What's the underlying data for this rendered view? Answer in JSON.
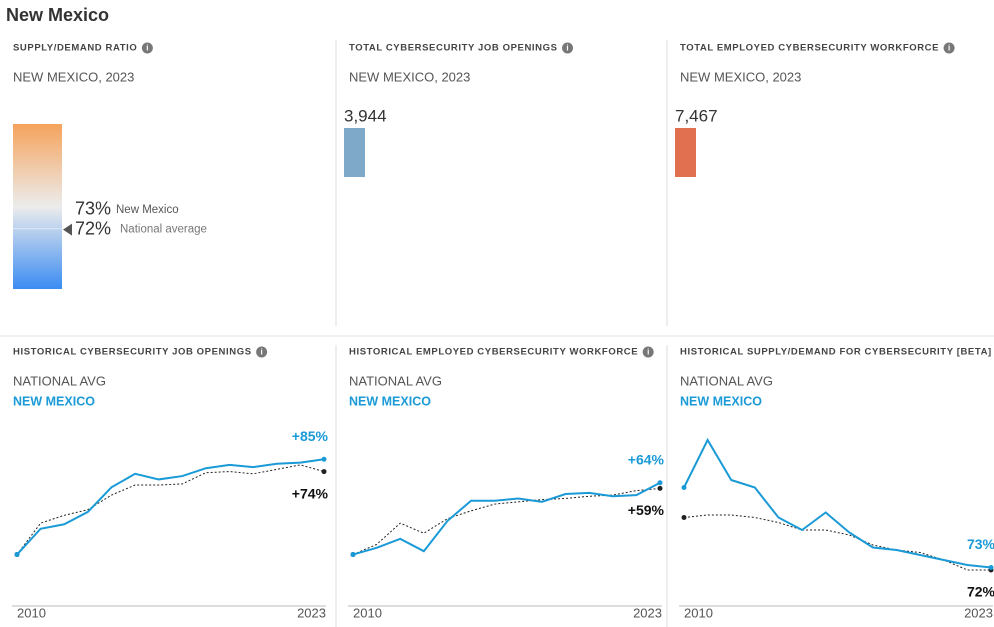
{
  "title": "New Mexico",
  "chart_data": [
    {
      "type": "gauge",
      "title": "SUPPLY/DEMAND RATIO",
      "subtitle": "NEW MEXICO, 2023",
      "ylim": [
        0,
        200
      ],
      "gradient": [
        "#f5a35c",
        "#ececec",
        "#3b8cf2"
      ],
      "series": [
        {
          "name": "New Mexico",
          "values": [
            73
          ],
          "value_labels": [
            "73%"
          ]
        },
        {
          "name": "National average",
          "values": [
            72
          ],
          "value_labels": [
            "72%"
          ]
        }
      ]
    },
    {
      "type": "bar",
      "title": "TOTAL CYBERSECURITY JOB OPENINGS",
      "subtitle": "NEW MEXICO, 2023",
      "values": [
        3944
      ],
      "value_labels": [
        "3,944"
      ],
      "color": "#7fa9c9",
      "ylim": [
        0,
        3944
      ]
    },
    {
      "type": "bar",
      "title": "TOTAL EMPLOYED CYBERSECURITY WORKFORCE",
      "subtitle": "NEW MEXICO, 2023",
      "values": [
        7467
      ],
      "value_labels": [
        "7,467"
      ],
      "color": "#e0704f",
      "ylim": [
        0,
        7467
      ]
    },
    {
      "type": "line",
      "title": "HISTORICAL CYBERSECURITY JOB OPENINGS",
      "x": [
        2010,
        2011,
        2012,
        2013,
        2014,
        2015,
        2016,
        2017,
        2018,
        2019,
        2020,
        2021,
        2022,
        2023
      ],
      "xlim": [
        2010,
        2023
      ],
      "xticks": [
        2010,
        2023
      ],
      "ylim": [
        -45,
        120
      ],
      "series": [
        {
          "name": "NATIONAL AVG",
          "color": "#222222",
          "values": [
            0,
            28,
            35,
            40,
            53,
            62,
            62,
            63,
            73,
            74,
            72,
            76,
            80,
            74
          ],
          "value_labels": [
            null,
            null,
            null,
            null,
            null,
            null,
            null,
            null,
            null,
            null,
            null,
            null,
            null,
            "+74%"
          ]
        },
        {
          "name": "NEW MEXICO",
          "color": "#1a9ad6",
          "values": [
            0,
            23,
            27,
            38,
            60,
            72,
            67,
            70,
            77,
            80,
            78,
            81,
            82,
            85
          ],
          "value_labels": [
            null,
            null,
            null,
            null,
            null,
            null,
            null,
            null,
            null,
            null,
            null,
            null,
            null,
            "+85%"
          ]
        }
      ]
    },
    {
      "type": "line",
      "title": "HISTORICAL EMPLOYED CYBERSECURITY WORKFORCE",
      "x": [
        2010,
        2011,
        2012,
        2013,
        2014,
        2015,
        2016,
        2017,
        2018,
        2019,
        2020,
        2021,
        2022,
        2023
      ],
      "xlim": [
        2010,
        2023
      ],
      "xticks": [
        2010,
        2023
      ],
      "ylim": [
        -45,
        120
      ],
      "series": [
        {
          "name": "NATIONAL AVG",
          "color": "#222222",
          "values": [
            0,
            9,
            28,
            19,
            32,
            39,
            45,
            47,
            49,
            50,
            52,
            53,
            57,
            59
          ],
          "value_labels": [
            null,
            null,
            null,
            null,
            null,
            null,
            null,
            null,
            null,
            null,
            null,
            null,
            null,
            "+59%"
          ]
        },
        {
          "name": "NEW MEXICO",
          "color": "#1a9ad6",
          "values": [
            0,
            6,
            14,
            3,
            30,
            48,
            48,
            50,
            47,
            54,
            55,
            52,
            53,
            64
          ],
          "value_labels": [
            null,
            null,
            null,
            null,
            null,
            null,
            null,
            null,
            null,
            null,
            null,
            null,
            null,
            "+64%"
          ]
        }
      ]
    },
    {
      "type": "line",
      "title": "HISTORICAL SUPPLY/DEMAND FOR CYBERSECURITY [BETA]",
      "x": [
        2010,
        2011,
        2012,
        2013,
        2014,
        2015,
        2016,
        2017,
        2018,
        2019,
        2020,
        2021,
        2022,
        2023
      ],
      "xlim": [
        2010,
        2023
      ],
      "xticks": [
        2010,
        2023
      ],
      "ylim": [
        58,
        132
      ],
      "series": [
        {
          "name": "NATIONAL AVG",
          "color": "#222222",
          "values": [
            93,
            94,
            94,
            93,
            91,
            88,
            88,
            86,
            82,
            80,
            79,
            76,
            72,
            72
          ],
          "value_labels": [
            null,
            null,
            null,
            null,
            null,
            null,
            null,
            null,
            null,
            null,
            null,
            null,
            null,
            "72%"
          ]
        },
        {
          "name": "NEW MEXICO",
          "color": "#1a9ad6",
          "values": [
            105,
            124,
            108,
            105,
            93,
            88,
            95,
            87,
            81,
            80,
            78,
            76,
            74,
            73
          ],
          "value_labels": [
            null,
            null,
            null,
            null,
            null,
            null,
            null,
            null,
            null,
            null,
            null,
            null,
            null,
            "73%"
          ]
        }
      ]
    }
  ]
}
